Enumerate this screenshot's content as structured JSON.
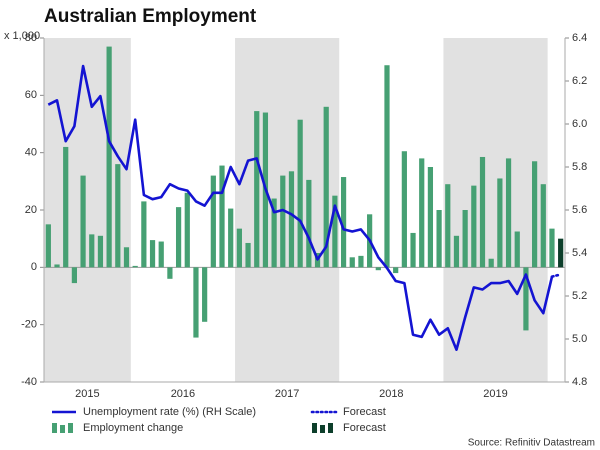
{
  "title": "Australian Employment",
  "chart_data": {
    "type": "combo",
    "y_unit_label": "x 1,000",
    "categories": [
      null,
      null,
      null,
      "2015",
      null,
      null,
      null,
      null,
      null,
      null,
      null,
      null,
      null,
      null,
      null,
      "2016",
      null,
      null,
      null,
      null,
      null,
      null,
      null,
      null,
      null,
      null,
      null,
      "2017",
      null,
      null,
      null,
      null,
      null,
      null,
      null,
      null,
      null,
      null,
      null,
      "2018",
      null,
      null,
      null,
      null,
      null,
      null,
      null,
      null,
      null,
      null,
      null,
      "2019",
      null,
      null,
      null,
      null,
      null,
      null,
      null,
      null
    ],
    "ylim": [
      -40,
      80
    ],
    "yticks": [
      -40,
      -20,
      0,
      20,
      40,
      60,
      80
    ],
    "y2lim": [
      4.8,
      6.4
    ],
    "y2ticks": [
      4.8,
      {
        "value": 5.0,
        "label": "5.0"
      },
      5.2,
      5.4,
      5.6,
      5.8,
      {
        "value": 6.0,
        "label": "6.0"
      },
      6.2,
      6.4
    ],
    "year_shading": true,
    "series": [
      {
        "name": "Unemployment rate (%) (RH Scale)",
        "kind": "line",
        "style": "solid",
        "axis": "y2",
        "color": "#1414d2",
        "values": [
          6.09,
          6.11,
          5.92,
          5.99,
          6.27,
          6.08,
          6.13,
          5.92,
          5.85,
          5.79,
          6.02,
          5.67,
          5.65,
          5.66,
          5.72,
          5.7,
          5.69,
          5.64,
          5.62,
          5.68,
          5.68,
          5.8,
          5.72,
          5.83,
          5.84,
          5.7,
          5.59,
          5.6,
          5.58,
          5.55,
          5.47,
          5.37,
          5.43,
          5.62,
          5.51,
          5.5,
          5.51,
          5.46,
          5.38,
          5.33,
          5.27,
          5.26,
          5.02,
          5.01,
          5.09,
          5.02,
          5.05,
          4.95,
          5.1,
          5.24,
          5.23,
          5.26,
          5.26,
          5.27,
          5.21,
          5.3,
          5.18,
          5.12,
          5.29,
          null
        ]
      },
      {
        "name": "Forecast",
        "kind": "line",
        "style": "dotted",
        "axis": "y2",
        "color": "#1414d2",
        "values": [
          null,
          null,
          null,
          null,
          null,
          null,
          null,
          null,
          null,
          null,
          null,
          null,
          null,
          null,
          null,
          null,
          null,
          null,
          null,
          null,
          null,
          null,
          null,
          null,
          null,
          null,
          null,
          null,
          null,
          null,
          null,
          null,
          null,
          null,
          null,
          null,
          null,
          null,
          null,
          null,
          null,
          null,
          null,
          null,
          null,
          null,
          null,
          null,
          null,
          null,
          null,
          null,
          null,
          null,
          null,
          null,
          null,
          null,
          5.29,
          5.3
        ]
      },
      {
        "name": "Employment change",
        "kind": "bar",
        "color": "#46a073",
        "values": [
          15,
          1,
          42,
          -5.5,
          32,
          11.5,
          11,
          77,
          36,
          7,
          0.5,
          23,
          9.5,
          9,
          -4,
          21,
          26,
          -24.5,
          -19,
          32,
          35.5,
          20.5,
          13.5,
          8.5,
          54.5,
          54,
          24,
          32,
          33.5,
          51.5,
          30.5,
          5,
          56,
          25,
          31.5,
          3.5,
          4,
          18.5,
          -1,
          70.5,
          -2,
          40.5,
          12,
          38,
          35,
          20,
          29,
          11,
          20,
          28.5,
          38.5,
          3,
          31,
          38,
          12.5,
          -22,
          37,
          29,
          13.5,
          null
        ]
      },
      {
        "name": "Forecast",
        "kind": "bar",
        "color": "#0d3f2b",
        "values": [
          null,
          null,
          null,
          null,
          null,
          null,
          null,
          null,
          null,
          null,
          null,
          null,
          null,
          null,
          null,
          null,
          null,
          null,
          null,
          null,
          null,
          null,
          null,
          null,
          null,
          null,
          null,
          null,
          null,
          null,
          null,
          null,
          null,
          null,
          null,
          null,
          null,
          null,
          null,
          null,
          null,
          null,
          null,
          null,
          null,
          null,
          null,
          null,
          null,
          null,
          null,
          null,
          null,
          null,
          null,
          null,
          null,
          null,
          null,
          10
        ]
      }
    ]
  },
  "source": "Source: Refinitiv Datastream"
}
